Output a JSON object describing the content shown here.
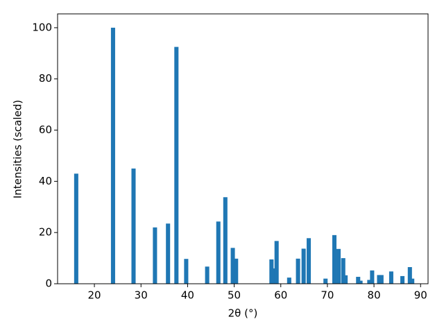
{
  "chart_data": {
    "type": "bar",
    "xlabel": "2θ (°)",
    "ylabel": "Intensities (scaled)",
    "color": "#1f77b4",
    "x": [
      16.1,
      24.0,
      28.4,
      33.0,
      35.8,
      37.6,
      39.7,
      44.2,
      46.6,
      48.1,
      49.7,
      50.4,
      58.0,
      58.4,
      59.1,
      61.8,
      63.7,
      64.9,
      66.0,
      69.6,
      71.5,
      72.4,
      73.4,
      73.9,
      76.6,
      77.1,
      79.0,
      79.6,
      81.1,
      81.6,
      83.7,
      86.1,
      87.7,
      88.2
    ],
    "values": [
      43,
      100,
      45,
      22,
      23.5,
      92.5,
      9.7,
      6.7,
      24.3,
      33.8,
      14,
      9.8,
      9.5,
      6,
      16.7,
      2.4,
      9.8,
      13.7,
      17.8,
      2,
      19,
      13.6,
      10,
      3.3,
      2.7,
      1.2,
      1.5,
      5.2,
      3.4,
      3.4,
      4.8,
      3,
      6.5,
      2
    ],
    "xlim": [
      12.1,
      91.6
    ],
    "ylim": [
      0,
      105.4
    ],
    "xticks": [
      20,
      30,
      40,
      50,
      60,
      70,
      80,
      90
    ],
    "yticks": [
      0,
      20,
      40,
      60,
      80,
      100
    ],
    "grid": false
  }
}
